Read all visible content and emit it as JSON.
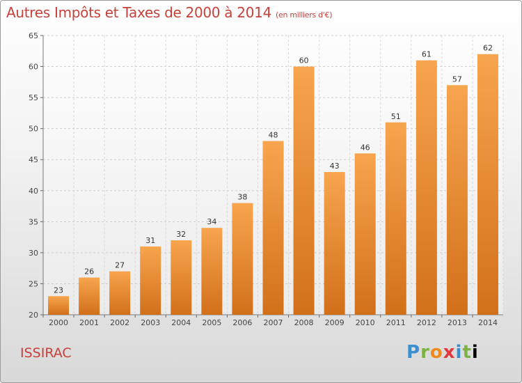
{
  "title": "Autres Impôts et Taxes de 2000 à 2014",
  "unit_note": "(en milliers d'€)",
  "commune": "ISSIRAC",
  "brand": {
    "letters": [
      "P",
      "r",
      "o",
      "x",
      "i",
      "t",
      "i"
    ]
  },
  "colors": {
    "bar_top": "#f7a54e",
    "bar_bottom": "#d2701a",
    "title": "#c8403a"
  },
  "chart_data": {
    "type": "bar",
    "title": "Autres Impôts et Taxes de 2000 à 2014",
    "categories": [
      "2000",
      "2001",
      "2002",
      "2003",
      "2004",
      "2005",
      "2006",
      "2007",
      "2008",
      "2009",
      "2010",
      "2011",
      "2012",
      "2013",
      "2014"
    ],
    "values": [
      23,
      26,
      27,
      31,
      32,
      34,
      38,
      48,
      60,
      43,
      46,
      51,
      61,
      57,
      62
    ],
    "ylim": [
      20,
      65
    ],
    "yticks": [
      20,
      25,
      30,
      35,
      40,
      45,
      50,
      55,
      60,
      65
    ],
    "grid": true,
    "xlabel": "",
    "ylabel": ""
  }
}
